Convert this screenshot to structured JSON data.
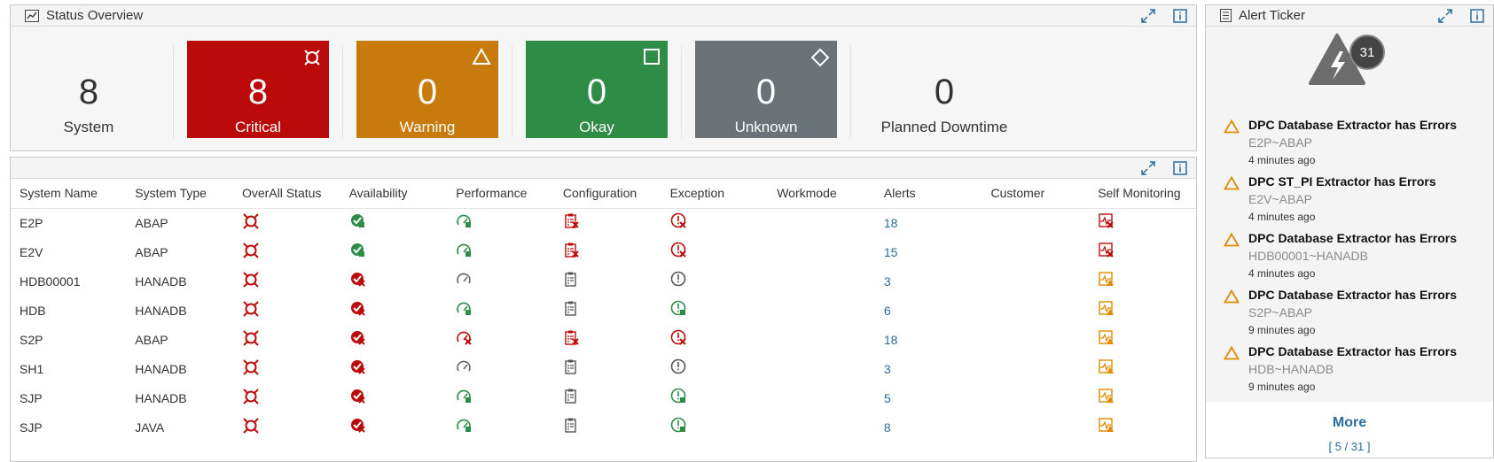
{
  "status_overview": {
    "title": "Status Overview",
    "tiles": [
      {
        "value": "8",
        "label": "System"
      },
      {
        "value": "8",
        "label": "Critical",
        "color": "#bb0a0a"
      },
      {
        "value": "0",
        "label": "Warning",
        "color": "#c87a0c"
      },
      {
        "value": "0",
        "label": "Okay",
        "color": "#2f8c47"
      },
      {
        "value": "0",
        "label": "Unknown",
        "color": "#6c7378"
      },
      {
        "value": "0",
        "label": "Planned Downtime"
      }
    ]
  },
  "table": {
    "columns": [
      "System Name",
      "System Type",
      "OverAll Status",
      "Availability",
      "Performance",
      "Configuration",
      "Exception",
      "Workmode",
      "Alerts",
      "Customer",
      "Self Monitoring"
    ],
    "rows": [
      {
        "name": "E2P",
        "type": "ABAP",
        "alerts": "18",
        "avail": "ok",
        "perf": "ok",
        "conf": "critical",
        "exc": "critical",
        "self": "critical"
      },
      {
        "name": "E2V",
        "type": "ABAP",
        "alerts": "15",
        "avail": "ok",
        "perf": "ok",
        "conf": "critical",
        "exc": "critical",
        "self": "critical"
      },
      {
        "name": "HDB00001",
        "type": "HANADB",
        "alerts": "3",
        "avail": "critical",
        "perf": "unknown",
        "conf": "unknown",
        "exc": "unknown",
        "self": "warning"
      },
      {
        "name": "HDB",
        "type": "HANADB",
        "alerts": "6",
        "avail": "critical",
        "perf": "ok",
        "conf": "unknown",
        "exc": "ok",
        "self": "warning"
      },
      {
        "name": "S2P",
        "type": "ABAP",
        "alerts": "18",
        "avail": "critical",
        "perf": "critical",
        "conf": "critical",
        "exc": "critical",
        "self": "warning"
      },
      {
        "name": "SH1",
        "type": "HANADB",
        "alerts": "3",
        "avail": "critical",
        "perf": "unknown",
        "conf": "unknown",
        "exc": "unknown",
        "self": "warning"
      },
      {
        "name": "SJP",
        "type": "HANADB",
        "alerts": "5",
        "avail": "critical",
        "perf": "ok",
        "conf": "unknown",
        "exc": "ok",
        "self": "warning"
      },
      {
        "name": "SJP",
        "type": "JAVA",
        "alerts": "8",
        "avail": "critical",
        "perf": "ok",
        "conf": "unknown",
        "exc": "ok",
        "self": "warning"
      }
    ]
  },
  "alert_ticker": {
    "title": "Alert Ticker",
    "count": "31",
    "items": [
      {
        "title": "DPC Database Extractor has Errors",
        "system": "E2P~ABAP",
        "time": "4 minutes ago"
      },
      {
        "title": "DPC ST_PI Extractor has Errors",
        "system": "E2V~ABAP",
        "time": "4 minutes ago"
      },
      {
        "title": "DPC Database Extractor has Errors",
        "system": "HDB00001~HANADB",
        "time": "4 minutes ago"
      },
      {
        "title": "DPC Database Extractor has Errors",
        "system": "S2P~ABAP",
        "time": "9 minutes ago"
      },
      {
        "title": "DPC Database Extractor has Errors",
        "system": "HDB~HANADB",
        "time": "9 minutes ago"
      }
    ],
    "more_label": "More",
    "paging": "[ 5 / 31 ]"
  },
  "colors": {
    "critical": "#bb0a0a",
    "warning": "#e08a00",
    "ok": "#2f8c47",
    "unknown": "#666666",
    "link": "#2b6c9e"
  }
}
